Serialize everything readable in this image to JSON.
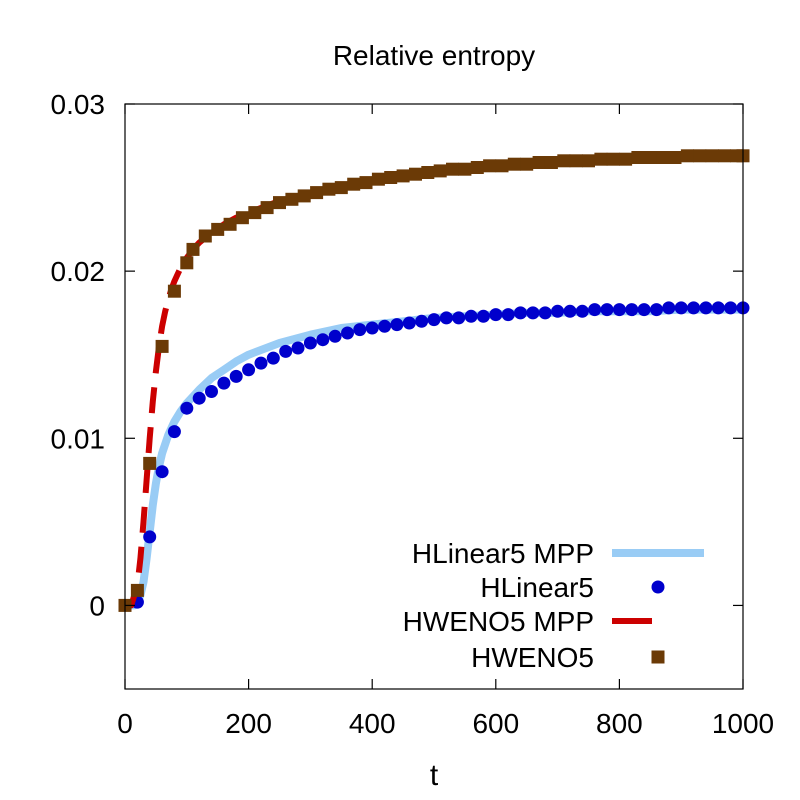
{
  "chart_data": {
    "type": "line",
    "title": "Relative entropy",
    "xlabel": "t",
    "ylabel": "",
    "xlim": [
      0,
      1000
    ],
    "ylim": [
      -0.005,
      0.03
    ],
    "xticks": [
      0,
      200,
      400,
      600,
      800,
      1000
    ],
    "yticks": [
      0,
      0.01,
      0.02,
      0.03
    ],
    "xtick_labels": [
      "0",
      "200",
      "400",
      "600",
      "800",
      "1000"
    ],
    "ytick_labels": [
      "0",
      "0.01",
      "0.02",
      "0.03"
    ],
    "grid": false,
    "legend_position": "bottom-right",
    "series": [
      {
        "name": "HLinear5 MPP",
        "style": "solid-line",
        "color": "#99ccf5",
        "x": [
          0,
          15,
          20,
          25,
          30,
          35,
          40,
          45,
          50,
          55,
          60,
          70,
          80,
          90,
          100,
          120,
          140,
          160,
          180,
          200,
          250,
          300,
          350,
          400,
          450,
          500,
          550,
          600,
          650,
          700,
          750,
          800,
          850,
          900,
          950,
          1000
        ],
        "y": [
          0,
          0,
          0.0002,
          0.0006,
          0.0014,
          0.0028,
          0.0044,
          0.006,
          0.0073,
          0.0083,
          0.0091,
          0.0102,
          0.011,
          0.0116,
          0.0121,
          0.0129,
          0.0136,
          0.0141,
          0.0146,
          0.015,
          0.0157,
          0.0162,
          0.0166,
          0.0168,
          0.017,
          0.0172,
          0.0173,
          0.0174,
          0.0175,
          0.0175,
          0.0176,
          0.0176,
          0.0176,
          0.0177,
          0.0177,
          0.0177
        ]
      },
      {
        "name": "HLinear5",
        "style": "circles",
        "color": "#0000cc",
        "x": [
          20,
          40,
          60,
          80,
          100,
          120,
          140,
          160,
          180,
          200,
          220,
          240,
          260,
          280,
          300,
          320,
          340,
          360,
          380,
          400,
          420,
          440,
          460,
          480,
          500,
          520,
          540,
          560,
          580,
          600,
          620,
          640,
          660,
          680,
          700,
          720,
          740,
          760,
          780,
          800,
          820,
          840,
          860,
          880,
          900,
          920,
          940,
          960,
          980,
          1000
        ],
        "y": [
          0.0002,
          0.0041,
          0.008,
          0.0104,
          0.0118,
          0.0124,
          0.0128,
          0.0133,
          0.0137,
          0.0141,
          0.0145,
          0.0148,
          0.0152,
          0.0154,
          0.0157,
          0.0159,
          0.0161,
          0.0163,
          0.0165,
          0.0166,
          0.0167,
          0.0168,
          0.0169,
          0.017,
          0.0171,
          0.0172,
          0.0172,
          0.0173,
          0.0173,
          0.0174,
          0.0174,
          0.0175,
          0.0175,
          0.0175,
          0.0176,
          0.0176,
          0.0176,
          0.0177,
          0.0177,
          0.0177,
          0.0177,
          0.0177,
          0.0177,
          0.0178,
          0.0178,
          0.0178,
          0.0178,
          0.0178,
          0.0178,
          0.0178
        ]
      },
      {
        "name": "HWENO5 MPP",
        "style": "dashed-line",
        "color": "#cc0000",
        "x": [
          0,
          10,
          20,
          25,
          30,
          35,
          40,
          45,
          50,
          55,
          60,
          65,
          70,
          75,
          80,
          85,
          90,
          95,
          100,
          110,
          120,
          130,
          140,
          160,
          180,
          200,
          250,
          300,
          350,
          400,
          450,
          500,
          550,
          600,
          650,
          700,
          750,
          800,
          850,
          900,
          950,
          1000
        ],
        "y": [
          0,
          0,
          0.0012,
          0.0028,
          0.005,
          0.0075,
          0.01,
          0.0122,
          0.014,
          0.0155,
          0.0167,
          0.0176,
          0.0183,
          0.0189,
          0.0194,
          0.0198,
          0.0202,
          0.0205,
          0.0208,
          0.0213,
          0.0217,
          0.022,
          0.0223,
          0.0228,
          0.0232,
          0.0235,
          0.0242,
          0.0247,
          0.0251,
          0.0254,
          0.0257,
          0.0259,
          0.0261,
          0.0262,
          0.0264,
          0.0265,
          0.0266,
          0.0267,
          0.0267,
          0.0268,
          0.0268,
          0.0269
        ]
      },
      {
        "name": "HWENO5",
        "style": "squares",
        "color": "#6b3a06",
        "x": [
          0,
          20,
          40,
          60,
          80,
          100,
          110,
          130,
          150,
          170,
          190,
          210,
          230,
          250,
          270,
          290,
          310,
          330,
          350,
          370,
          390,
          410,
          430,
          450,
          470,
          490,
          510,
          530,
          550,
          570,
          590,
          610,
          630,
          650,
          670,
          690,
          710,
          730,
          750,
          770,
          790,
          810,
          830,
          850,
          870,
          890,
          910,
          930,
          950,
          970,
          990,
          1000
        ],
        "y": [
          0,
          0.0009,
          0.0085,
          0.0155,
          0.0188,
          0.0205,
          0.0213,
          0.0221,
          0.0225,
          0.0228,
          0.0232,
          0.0235,
          0.0238,
          0.0241,
          0.0243,
          0.0245,
          0.0247,
          0.0249,
          0.025,
          0.0252,
          0.0253,
          0.0255,
          0.0256,
          0.0257,
          0.0258,
          0.0259,
          0.026,
          0.0261,
          0.0261,
          0.0262,
          0.0263,
          0.0263,
          0.0264,
          0.0264,
          0.0265,
          0.0265,
          0.0266,
          0.0266,
          0.0266,
          0.0267,
          0.0267,
          0.0267,
          0.0268,
          0.0268,
          0.0268,
          0.0268,
          0.0269,
          0.0269,
          0.0269,
          0.0269,
          0.0269,
          0.0269
        ]
      }
    ]
  }
}
